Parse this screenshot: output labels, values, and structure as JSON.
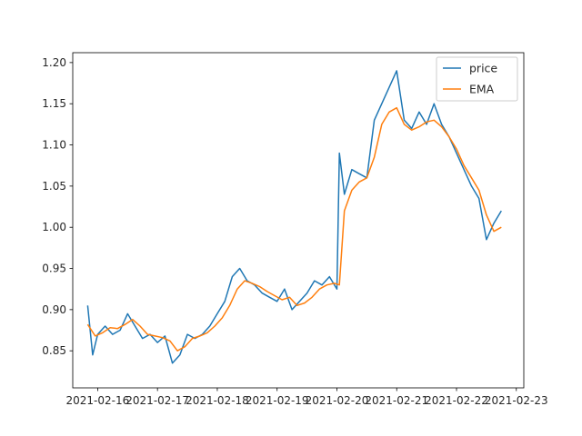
{
  "chart_data": {
    "type": "line",
    "title": "",
    "xlabel": "",
    "ylabel": "",
    "x_ticks": [
      "2021-02-16",
      "2021-02-17",
      "2021-02-18",
      "2021-02-19",
      "2021-02-20",
      "2021-02-21",
      "2021-02-22",
      "2021-02-23"
    ],
    "y_ticks": [
      "0.85",
      "0.90",
      "0.95",
      "1.00",
      "1.05",
      "1.10",
      "1.15",
      "1.20"
    ],
    "xlim": [
      "2021-02-15 14:00",
      "2021-02-23 03:00"
    ],
    "ylim": [
      0.805,
      1.212
    ],
    "grid": false,
    "legend_position": "top-right",
    "series": [
      {
        "name": "price",
        "color": "#1f77b4",
        "x": [
          "2021-02-15 20:00",
          "2021-02-15 22:00",
          "2021-02-16 00:00",
          "2021-02-16 03:00",
          "2021-02-16 06:00",
          "2021-02-16 09:00",
          "2021-02-16 12:00",
          "2021-02-16 15:00",
          "2021-02-16 18:00",
          "2021-02-16 21:00",
          "2021-02-17 00:00",
          "2021-02-17 03:00",
          "2021-02-17 06:00",
          "2021-02-17 09:00",
          "2021-02-17 12:00",
          "2021-02-17 15:00",
          "2021-02-17 18:00",
          "2021-02-17 21:00",
          "2021-02-18 00:00",
          "2021-02-18 03:00",
          "2021-02-18 06:00",
          "2021-02-18 09:00",
          "2021-02-18 12:00",
          "2021-02-18 15:00",
          "2021-02-18 18:00",
          "2021-02-18 21:00",
          "2021-02-19 00:00",
          "2021-02-19 03:00",
          "2021-02-19 06:00",
          "2021-02-19 09:00",
          "2021-02-19 12:00",
          "2021-02-19 15:00",
          "2021-02-19 18:00",
          "2021-02-19 21:00",
          "2021-02-20 00:00",
          "2021-02-20 01:00",
          "2021-02-20 03:00",
          "2021-02-20 06:00",
          "2021-02-20 09:00",
          "2021-02-20 12:00",
          "2021-02-20 15:00",
          "2021-02-20 18:00",
          "2021-02-20 21:00",
          "2021-02-21 00:00",
          "2021-02-21 03:00",
          "2021-02-21 06:00",
          "2021-02-21 09:00",
          "2021-02-21 12:00",
          "2021-02-21 15:00",
          "2021-02-21 18:00",
          "2021-02-21 21:00",
          "2021-02-22 00:00",
          "2021-02-22 03:00",
          "2021-02-22 06:00",
          "2021-02-22 09:00",
          "2021-02-22 12:00",
          "2021-02-22 15:00",
          "2021-02-22 18:00"
        ],
        "values": [
          0.905,
          0.845,
          0.87,
          0.88,
          0.87,
          0.875,
          0.895,
          0.88,
          0.865,
          0.87,
          0.86,
          0.868,
          0.835,
          0.845,
          0.87,
          0.865,
          0.87,
          0.88,
          0.895,
          0.91,
          0.94,
          0.95,
          0.935,
          0.93,
          0.92,
          0.915,
          0.91,
          0.925,
          0.9,
          0.91,
          0.92,
          0.935,
          0.93,
          0.94,
          0.925,
          1.09,
          1.04,
          1.07,
          1.065,
          1.06,
          1.13,
          1.15,
          1.17,
          1.19,
          1.13,
          1.12,
          1.14,
          1.125,
          1.15,
          1.125,
          1.11,
          1.09,
          1.07,
          1.05,
          1.035,
          0.985,
          1.005,
          1.02
        ]
      },
      {
        "name": "EMA",
        "color": "#ff7f0e",
        "x": [
          "2021-02-15 20:00",
          "2021-02-15 23:00",
          "2021-02-16 02:00",
          "2021-02-16 05:00",
          "2021-02-16 08:00",
          "2021-02-16 11:00",
          "2021-02-16 14:00",
          "2021-02-16 17:00",
          "2021-02-16 20:00",
          "2021-02-16 23:00",
          "2021-02-17 02:00",
          "2021-02-17 05:00",
          "2021-02-17 08:00",
          "2021-02-17 11:00",
          "2021-02-17 14:00",
          "2021-02-17 17:00",
          "2021-02-17 20:00",
          "2021-02-17 23:00",
          "2021-02-18 02:00",
          "2021-02-18 05:00",
          "2021-02-18 08:00",
          "2021-02-18 11:00",
          "2021-02-18 14:00",
          "2021-02-18 17:00",
          "2021-02-18 20:00",
          "2021-02-18 23:00",
          "2021-02-19 02:00",
          "2021-02-19 05:00",
          "2021-02-19 08:00",
          "2021-02-19 11:00",
          "2021-02-19 14:00",
          "2021-02-19 17:00",
          "2021-02-19 20:00",
          "2021-02-19 23:00",
          "2021-02-20 01:00",
          "2021-02-20 03:00",
          "2021-02-20 06:00",
          "2021-02-20 09:00",
          "2021-02-20 12:00",
          "2021-02-20 15:00",
          "2021-02-20 18:00",
          "2021-02-20 21:00",
          "2021-02-21 00:00",
          "2021-02-21 03:00",
          "2021-02-21 06:00",
          "2021-02-21 09:00",
          "2021-02-21 12:00",
          "2021-02-21 15:00",
          "2021-02-21 18:00",
          "2021-02-21 21:00",
          "2021-02-22 00:00",
          "2021-02-22 03:00",
          "2021-02-22 06:00",
          "2021-02-22 09:00",
          "2021-02-22 12:00",
          "2021-02-22 15:00",
          "2021-02-22 18:00"
        ],
        "values": [
          0.882,
          0.868,
          0.872,
          0.878,
          0.877,
          0.882,
          0.888,
          0.88,
          0.87,
          0.868,
          0.866,
          0.862,
          0.85,
          0.855,
          0.865,
          0.868,
          0.872,
          0.88,
          0.89,
          0.905,
          0.925,
          0.935,
          0.932,
          0.928,
          0.922,
          0.917,
          0.912,
          0.915,
          0.905,
          0.908,
          0.915,
          0.925,
          0.93,
          0.932,
          0.93,
          1.02,
          1.045,
          1.055,
          1.06,
          1.085,
          1.125,
          1.14,
          1.145,
          1.125,
          1.118,
          1.122,
          1.128,
          1.13,
          1.122,
          1.11,
          1.095,
          1.075,
          1.06,
          1.045,
          1.015,
          0.995,
          1.0
        ]
      }
    ]
  }
}
